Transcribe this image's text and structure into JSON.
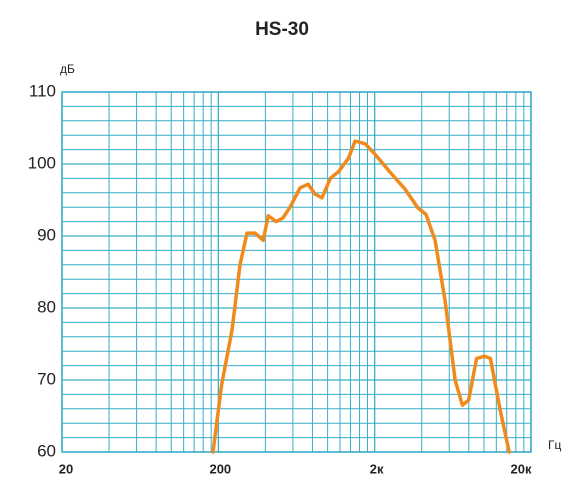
{
  "chart_data": {
    "type": "line",
    "title": "HS-30",
    "y_label": "дБ",
    "x_label": "Гц",
    "x": [
      185,
      210,
      245,
      275,
      305,
      343,
      387,
      417,
      469,
      518,
      575,
      667,
      750,
      833,
      921,
      1040,
      1170,
      1360,
      1500,
      1740,
      2000,
      2500,
      3130,
      3780,
      4260,
      4870,
      5640,
      6540,
      7280,
      7980,
      8980,
      10100,
      11000,
      12700,
      14500
    ],
    "series": [
      {
        "name": "HS-30",
        "color": "#f08a1c",
        "values": [
          60,
          69.3,
          77,
          86,
          90.4,
          90.4,
          89.4,
          92.8,
          92,
          92.5,
          94,
          96.7,
          97.2,
          95.8,
          95.3,
          98,
          98.9,
          100.8,
          103.2,
          102.8,
          101.4,
          98.9,
          96.5,
          93.9,
          93,
          89.4,
          81,
          70,
          66.5,
          67.2,
          73,
          73.3,
          73,
          65.8,
          60
        ]
      }
    ],
    "xlim": [
      20,
      20000
    ],
    "xscale": "log",
    "xticks": [
      20,
      200,
      {
        "value": 2000,
        "label": "2к"
      },
      {
        "value": 20000,
        "label": "20к"
      }
    ],
    "ylim": [
      60,
      110
    ],
    "yticks": [
      60,
      70,
      80,
      90,
      100,
      110
    ],
    "grid": true,
    "grid_color": "#39aec8"
  }
}
